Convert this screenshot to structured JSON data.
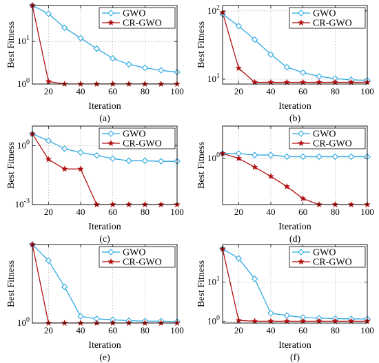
{
  "chart_data": [
    {
      "id": "a",
      "type": "line",
      "caption": "(a)",
      "xlabel": "Iteration",
      "ylabel": "Best Fitness",
      "yscale": "log",
      "xlim": [
        10,
        100
      ],
      "ylim": [
        1,
        70
      ],
      "xticks": [
        20,
        40,
        60,
        80,
        100
      ],
      "yticks": [
        1,
        10
      ],
      "ytick_labels": [
        "10^0",
        "10^1"
      ],
      "grid": true,
      "legend_position": "top-right",
      "x": [
        10,
        20,
        30,
        40,
        50,
        60,
        70,
        80,
        90,
        100
      ],
      "series": [
        {
          "name": "GWO",
          "color": "#2fa8e0",
          "marker": "diamond",
          "values": [
            70,
            45,
            21,
            12,
            6.8,
            4.0,
            2.9,
            2.4,
            2.1,
            1.9
          ]
        },
        {
          "name": "CR-GWO",
          "color": "#b01010",
          "marker": "star",
          "values": [
            70,
            1.15,
            1.0,
            1.0,
            1.0,
            1.0,
            1.0,
            1.0,
            1.0,
            1.0
          ]
        }
      ]
    },
    {
      "id": "b",
      "type": "line",
      "caption": "(b)",
      "xlabel": "Iteration",
      "ylabel": "Best Fitness",
      "yscale": "log",
      "xlim": [
        10,
        100
      ],
      "ylim": [
        8.5,
        120
      ],
      "xticks": [
        20,
        40,
        60,
        80,
        100
      ],
      "yticks": [
        10,
        100
      ],
      "ytick_labels": [
        "10^1",
        "10^2"
      ],
      "grid": true,
      "legend_position": "top-right",
      "x": [
        10,
        20,
        30,
        40,
        50,
        60,
        70,
        80,
        90,
        100
      ],
      "series": [
        {
          "name": "GWO",
          "color": "#2fa8e0",
          "marker": "diamond",
          "values": [
            90,
            60,
            38,
            23,
            15,
            12.5,
            11,
            10.2,
            9.8,
            9.6
          ]
        },
        {
          "name": "CR-GWO",
          "color": "#b01010",
          "marker": "star",
          "values": [
            95,
            14.5,
            9.0,
            9.0,
            9.0,
            9.0,
            9.0,
            9.0,
            9.0,
            9.0
          ]
        }
      ]
    },
    {
      "id": "c",
      "type": "line",
      "caption": "(c)",
      "xlabel": "Iteration",
      "ylabel": "Best Fitness",
      "yscale": "log",
      "xlim": [
        10,
        100
      ],
      "ylim": [
        0.001,
        10
      ],
      "xticks": [
        20,
        40,
        60,
        80,
        100
      ],
      "yticks": [
        0.001,
        1
      ],
      "ytick_labels": [
        "10^-3",
        "10^0"
      ],
      "grid": true,
      "legend_position": "top-right",
      "x": [
        10,
        20,
        30,
        40,
        50,
        60,
        70,
        80,
        90,
        100
      ],
      "series": [
        {
          "name": "GWO",
          "color": "#2fa8e0",
          "marker": "diamond",
          "values": [
            4.0,
            1.8,
            0.7,
            0.45,
            0.32,
            0.22,
            0.17,
            0.17,
            0.16,
            0.16
          ]
        },
        {
          "name": "CR-GWO",
          "color": "#b01010",
          "marker": "star",
          "values": [
            4.0,
            0.2,
            0.065,
            0.065,
            0.001,
            0.001,
            0.001,
            0.001,
            0.001,
            0.001
          ]
        }
      ]
    },
    {
      "id": "d",
      "type": "line",
      "caption": "(d)",
      "xlabel": "Iteration",
      "ylabel": "Best Fitness",
      "yscale": "log",
      "xlim": [
        10,
        100
      ],
      "ylim": [
        0.27,
        2.5
      ],
      "xticks": [
        20,
        40,
        60,
        80,
        100
      ],
      "yticks": [
        1
      ],
      "ytick_labels": [
        "10^0"
      ],
      "grid": true,
      "legend_position": "top-right",
      "x": [
        10,
        20,
        30,
        40,
        50,
        60,
        70,
        80,
        90,
        100
      ],
      "series": [
        {
          "name": "GWO",
          "color": "#2fa8e0",
          "marker": "diamond",
          "values": [
            1.15,
            1.15,
            1.1,
            1.1,
            1.05,
            1.05,
            1.05,
            1.05,
            1.05,
            1.05
          ]
        },
        {
          "name": "CR-GWO",
          "color": "#b01010",
          "marker": "star",
          "values": [
            1.15,
            1.0,
            0.78,
            0.6,
            0.45,
            0.32,
            0.27,
            0.27,
            0.27,
            0.27
          ]
        }
      ]
    },
    {
      "id": "e",
      "type": "line",
      "caption": "(e)",
      "xlabel": "Iteration",
      "ylabel": "Best Fitness",
      "yscale": "log",
      "xlim": [
        10,
        100
      ],
      "ylim": [
        1,
        5
      ],
      "xticks": [
        20,
        40,
        60,
        80,
        100
      ],
      "yticks": [
        1
      ],
      "ytick_labels": [
        "10^0"
      ],
      "grid": true,
      "legend_position": "top-right",
      "x": [
        10,
        20,
        30,
        40,
        50,
        60,
        70,
        80,
        90,
        100
      ],
      "series": [
        {
          "name": "GWO",
          "color": "#2fa8e0",
          "marker": "diamond",
          "values": [
            5.0,
            3.6,
            2.1,
            1.15,
            1.09,
            1.07,
            1.05,
            1.04,
            1.04,
            1.03
          ]
        },
        {
          "name": "CR-GWO",
          "color": "#b01010",
          "marker": "star",
          "values": [
            5.0,
            1.0,
            1.0,
            1.0,
            1.0,
            1.0,
            1.0,
            1.0,
            1.0,
            1.0
          ]
        }
      ]
    },
    {
      "id": "f",
      "type": "line",
      "caption": "(f)",
      "xlabel": "Iteration",
      "ylabel": "Best Fitness",
      "yscale": "log",
      "xlim": [
        10,
        100
      ],
      "ylim": [
        0.9,
        90
      ],
      "xticks": [
        20,
        40,
        60,
        80,
        100
      ],
      "yticks": [
        1,
        10
      ],
      "ytick_labels": [
        "10^0",
        "10^1"
      ],
      "grid": true,
      "legend_position": "top-right",
      "x": [
        10,
        20,
        30,
        40,
        50,
        60,
        70,
        80,
        90,
        100
      ],
      "series": [
        {
          "name": "GWO",
          "color": "#2fa8e0",
          "marker": "diamond",
          "values": [
            70,
            40,
            12,
            1.6,
            1.4,
            1.25,
            1.2,
            1.17,
            1.15,
            1.14
          ]
        },
        {
          "name": "CR-GWO",
          "color": "#b01010",
          "marker": "star",
          "values": [
            70,
            1.05,
            1.0,
            1.0,
            1.0,
            1.0,
            1.0,
            1.0,
            1.0,
            1.0
          ]
        }
      ]
    }
  ]
}
